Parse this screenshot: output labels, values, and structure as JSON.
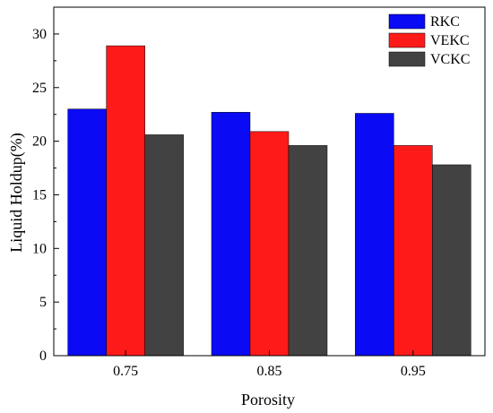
{
  "chart_data": {
    "type": "bar",
    "title": "",
    "xlabel": "Porosity",
    "ylabel": "Liquid Holdup(%)",
    "categories": [
      "0.75",
      "0.85",
      "0.95"
    ],
    "series": [
      {
        "name": "RKC",
        "color": "#0a0af5",
        "values": [
          23.0,
          22.7,
          22.6
        ]
      },
      {
        "name": "VEKC",
        "color": "#ff1a1a",
        "values": [
          28.9,
          20.9,
          19.6
        ]
      },
      {
        "name": "VCKC",
        "color": "#424242",
        "values": [
          20.6,
          19.6,
          17.8
        ]
      }
    ],
    "ylim": [
      0,
      32.5
    ],
    "yticks": [
      0,
      5,
      10,
      15,
      20,
      25,
      30
    ],
    "grid": false,
    "legend_position": "top-right"
  }
}
